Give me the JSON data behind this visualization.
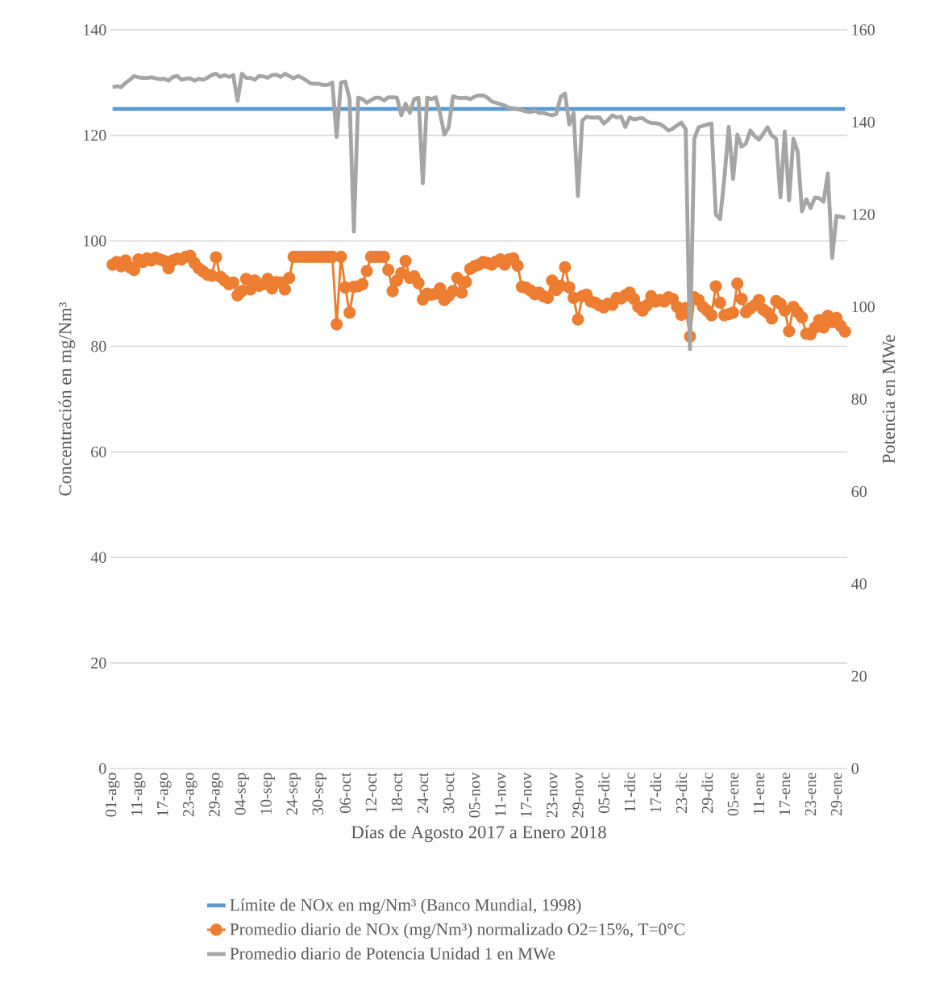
{
  "chart_data": {
    "type": "line",
    "xlabel": "Días de Agosto 2017 a Enero 2018",
    "ylabel": "Concentración en mg/Nm³",
    "y2label": "Potencia en MWe",
    "categories": [
      "01-ago",
      null,
      null,
      null,
      null,
      null,
      "11-ago",
      null,
      null,
      null,
      null,
      null,
      "17-ago",
      null,
      null,
      null,
      null,
      null,
      "23-ago",
      null,
      null,
      null,
      null,
      null,
      "29-ago",
      null,
      null,
      null,
      null,
      null,
      "04-sep",
      null,
      null,
      null,
      null,
      null,
      "10-sep",
      null,
      null,
      null,
      null,
      null,
      "24-sep",
      null,
      null,
      null,
      null,
      null,
      "30-sep",
      null,
      null,
      null,
      null,
      null,
      "06-oct",
      null,
      null,
      null,
      null,
      null,
      "12-oct",
      null,
      null,
      null,
      null,
      null,
      "18-oct",
      null,
      null,
      null,
      null,
      null,
      "24-oct",
      null,
      null,
      null,
      null,
      null,
      "30-oct",
      null,
      null,
      null,
      null,
      null,
      "05-nov",
      null,
      null,
      null,
      null,
      null,
      "11-nov",
      null,
      null,
      null,
      null,
      null,
      "17-nov",
      null,
      null,
      null,
      null,
      null,
      "23-nov",
      null,
      null,
      null,
      null,
      null,
      "29-nov",
      null,
      null,
      null,
      null,
      null,
      "05-dic",
      null,
      null,
      null,
      null,
      null,
      "11-dic",
      null,
      null,
      null,
      null,
      null,
      "17-dic",
      null,
      null,
      null,
      null,
      null,
      "23-dic",
      null,
      null,
      null,
      null,
      null,
      "29-dic",
      null,
      null,
      null,
      null,
      null,
      "05-ene",
      null,
      null,
      null,
      null,
      null,
      "11-ene",
      null,
      null,
      null,
      null,
      null,
      "17-ene",
      null,
      null,
      null,
      null,
      null,
      "23-ene",
      null,
      null,
      null,
      null,
      null,
      "29-ene",
      null,
      null
    ],
    "series": [
      {
        "name": "Límite de NOx en mg/Nm³ (Banco Mundial, 1998)",
        "color": "#5b9bd5",
        "values": [
          125,
          125,
          125,
          125,
          125,
          125,
          125,
          125,
          125,
          125,
          125,
          125,
          125,
          125,
          125,
          125,
          125,
          125,
          125,
          125,
          125,
          125,
          125,
          125,
          125,
          125,
          125,
          125,
          125,
          125,
          125,
          125,
          125,
          125,
          125,
          125,
          125,
          125,
          125,
          125,
          125,
          125,
          125,
          125,
          125,
          125,
          125,
          125,
          125,
          125,
          125,
          125,
          125,
          125,
          125,
          125,
          125,
          125,
          125,
          125,
          125,
          125,
          125,
          125,
          125,
          125,
          125,
          125,
          125,
          125,
          125,
          125,
          125,
          125,
          125,
          125,
          125,
          125,
          125,
          125,
          125,
          125,
          125,
          125,
          125,
          125,
          125,
          125,
          125,
          125,
          125,
          125,
          125,
          125,
          125,
          125,
          125,
          125,
          125,
          125,
          125,
          125,
          125,
          125,
          125,
          125,
          125,
          125,
          125,
          125,
          125,
          125,
          125,
          125,
          125,
          125,
          125,
          125,
          125,
          125,
          125,
          125,
          125,
          125,
          125,
          125,
          125,
          125,
          125,
          125,
          125,
          125,
          125,
          125,
          125,
          125,
          125,
          125,
          125,
          125,
          125,
          125,
          125,
          125,
          125,
          125,
          125,
          125,
          125,
          125,
          125,
          125,
          125,
          125,
          125,
          125,
          125,
          125,
          125,
          125,
          125,
          125,
          125,
          125,
          125,
          125,
          125,
          125,
          125,
          125,
          125
        ]
      },
      {
        "name": "Promedio diario de NOx (mg/Nm³) normalizado O2=15%, T=0°C",
        "color": "#ed7d31",
        "marker": "circle",
        "values": [
          95.5,
          96,
          95.2,
          96.3,
          95,
          94.5,
          96.5,
          96,
          96.7,
          96.3,
          96.8,
          96.5,
          96.2,
          94.8,
          96.3,
          96.6,
          96.5,
          97,
          97.2,
          95.8,
          94.8,
          94.2,
          93.6,
          93.4,
          96.9,
          93.2,
          92.5,
          91.8,
          92.1,
          89.7,
          90.5,
          92.8,
          90.8,
          92.5,
          91.5,
          91.8,
          92.8,
          91,
          92.2,
          92.1,
          90.8,
          93,
          97,
          97,
          97,
          97,
          97,
          97,
          97,
          97,
          97,
          97,
          84.2,
          97,
          91.2,
          86.4,
          91.3,
          91.4,
          91.8,
          94.3,
          97,
          97,
          97,
          97,
          94.5,
          90.5,
          92.5,
          93.9,
          96.2,
          93,
          93.3,
          92,
          88.9,
          90,
          89.8,
          90,
          91,
          88.8,
          89.6,
          90.5,
          93,
          90.2,
          92.2,
          94.7,
          95.2,
          95.5,
          96,
          95.8,
          95.5,
          96.1,
          96.5,
          95.5,
          96.5,
          96.7,
          95.3,
          91.3,
          91.1,
          90.6,
          89.9,
          90.2,
          89.5,
          89.2,
          92.5,
          90.7,
          91.5,
          95,
          91.2,
          89.2,
          85.1,
          89.5,
          89.8,
          88.5,
          88.3,
          87.8,
          87.4,
          88.1,
          87.9,
          89.2,
          89.1,
          89.7,
          90.2,
          89,
          87.5,
          86.8,
          87.8,
          89.5,
          88.5,
          88.8,
          88.5,
          89.3,
          89,
          87.5,
          86,
          87.3,
          81.9,
          89.3,
          88.8,
          87.5,
          86.8,
          85.9,
          91.4,
          88.3,
          85.9,
          86.1,
          86.4,
          91.9,
          89,
          86.5,
          87.2,
          87.8,
          88.8,
          87,
          86.4,
          85.3,
          88.6,
          88.1,
          86.8,
          82.9,
          87.5,
          86.5,
          85.5,
          82.4,
          82.3,
          83.6,
          85,
          83.6,
          85.8,
          84.6,
          85.4,
          83.9,
          82.8
        ]
      },
      {
        "name": "Promedio diario de Potencia Unidad 1 en MWe",
        "color": "#a5a5a5",
        "axis": "y2",
        "values": [
          147.6,
          147.8,
          147.6,
          148.5,
          149.2,
          150,
          149.7,
          149.6,
          149.6,
          149.7,
          149.5,
          149.3,
          149.4,
          149,
          149.8,
          150,
          149.2,
          149.4,
          149.5,
          149,
          149.4,
          149.2,
          149.6,
          150.2,
          150.5,
          149.8,
          150.2,
          149.8,
          150.2,
          144.6,
          150.5,
          149.6,
          149.6,
          149.2,
          150,
          149.9,
          149.6,
          150.2,
          150.3,
          149.8,
          150.5,
          150,
          149.5,
          150,
          149.6,
          149,
          148.4,
          148.3,
          148.3,
          148,
          148.1,
          148.6,
          136.8,
          148.6,
          148.8,
          145,
          116.3,
          145.3,
          145,
          144.2,
          144.8,
          145.3,
          145.3,
          144.7,
          145.4,
          145.4,
          145.3,
          141.5,
          144,
          142,
          145,
          145.3,
          126.8,
          145.3,
          145,
          145.4,
          142,
          137.3,
          138.9,
          145.6,
          145.3,
          145.2,
          145.3,
          145,
          145.5,
          145.8,
          145.8,
          145.3,
          144.5,
          144.2,
          143.9,
          143.6,
          143.1,
          143,
          142.8,
          142.6,
          142.3,
          142.2,
          142.5,
          142,
          142,
          141.7,
          141.5,
          141.8,
          145.5,
          146.2,
          139.5,
          142,
          124,
          140.3,
          141.2,
          141,
          141,
          141,
          139.7,
          140.5,
          141.5,
          141,
          141.2,
          139,
          141,
          140.6,
          140.8,
          140.9,
          140.2,
          139.8,
          139.8,
          139.6,
          139,
          138.2,
          138.6,
          139.3,
          139.9,
          138.5,
          90.8,
          136.4,
          138.9,
          139.2,
          139.5,
          139.7,
          120,
          119,
          128,
          139,
          127.7,
          137.3,
          134.7,
          135.4,
          138.2,
          137,
          136.2,
          137.5,
          138.9,
          137.1,
          136.4,
          123.7,
          138,
          123.1,
          136.4,
          133.6,
          120.7,
          123.3,
          121.4,
          123.7,
          123.5,
          122.8,
          128.9,
          110.6,
          119.7,
          119.5,
          119.3
        ]
      }
    ],
    "ylim": [
      0,
      140
    ],
    "yticks": [
      0,
      20,
      40,
      60,
      80,
      100,
      120,
      140
    ],
    "y2lim": [
      0,
      160
    ],
    "y2ticks": [
      0,
      20,
      40,
      60,
      80,
      100,
      120,
      140,
      160
    ],
    "grid": "y",
    "legend": "bottom"
  }
}
